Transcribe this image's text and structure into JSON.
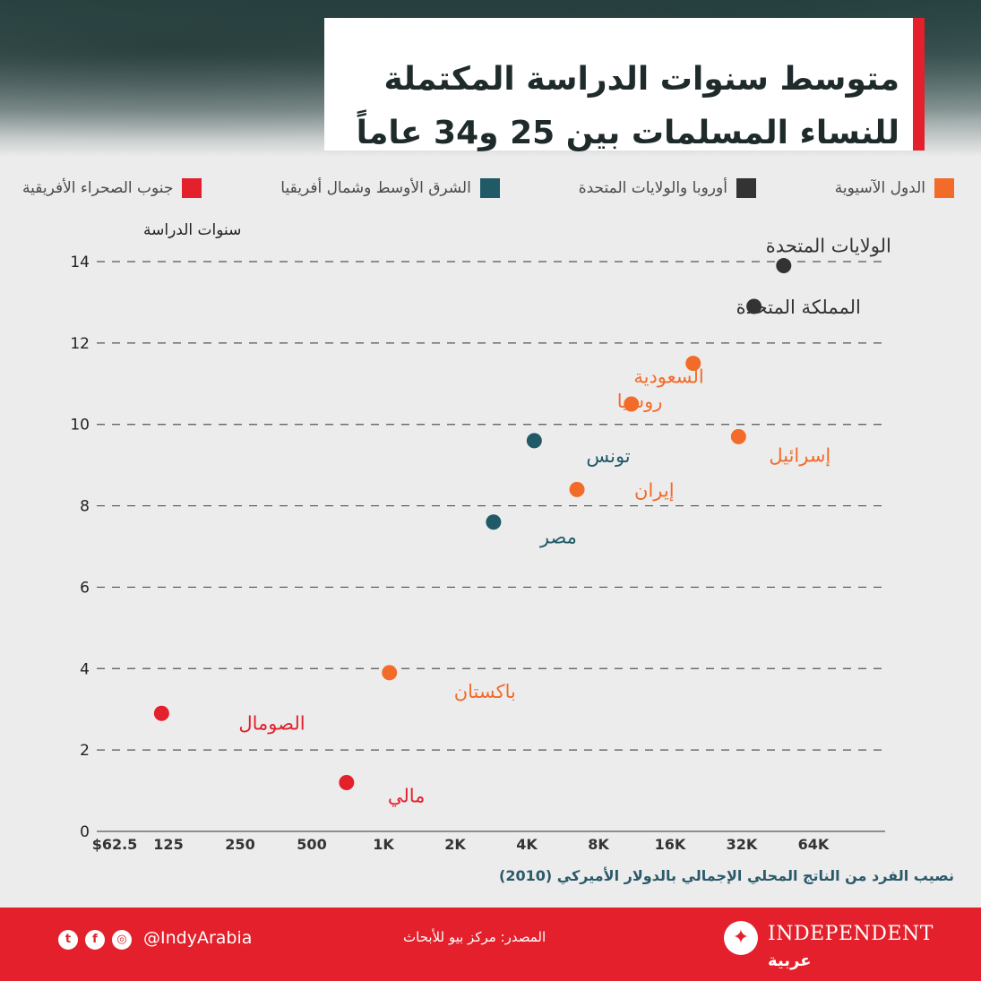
{
  "title": {
    "line1": "متوسط سنوات الدراسة المكتملة",
    "line2": "للنساء المسلمات بين 25 و34 عاماً"
  },
  "colors": {
    "asian": "#f26b29",
    "europe_us": "#333333",
    "mena": "#1f5a66",
    "ssa": "#e3202b",
    "brand_red": "#e3202b"
  },
  "legend": [
    {
      "label": "الدول الآسيوية",
      "color": "#f26b29"
    },
    {
      "label": "أوروبا والولايات المتحدة",
      "color": "#333333"
    },
    {
      "label": "الشرق الأوسط وشمال أفريقيا",
      "color": "#1f5a66"
    },
    {
      "label": "جنوب الصحراء الأفريقية",
      "color": "#e3202b"
    }
  ],
  "chart_data": {
    "type": "scatter",
    "ylabel": "سنوات الدراسة",
    "xlabel": "نصيب الفرد من الناتج المحلي الإجمالي بالدولار الأميركي (2010)",
    "x_scale": "log2",
    "xlim": [
      62.5,
      128000
    ],
    "ylim": [
      0,
      14
    ],
    "x_ticks": [
      62.5,
      125,
      250,
      500,
      1000,
      2000,
      4000,
      8000,
      16000,
      32000,
      64000
    ],
    "x_tick_labels": [
      "$62.5",
      "125",
      "250",
      "500",
      "1K",
      "2K",
      "4K",
      "8K",
      "16K",
      "32K",
      "64K"
    ],
    "y_ticks": [
      0,
      2,
      4,
      6,
      8,
      10,
      12,
      14
    ],
    "y_tick_labels": [
      "0",
      "2",
      "4",
      "6",
      "8",
      "10",
      "12",
      "14"
    ],
    "grid": true,
    "points": [
      {
        "label": "الولايات المتحدة",
        "x": 48000,
        "y": 13.9,
        "group": "europe_us"
      },
      {
        "label": "المملكة المتحدة",
        "x": 36000,
        "y": 12.9,
        "group": "europe_us"
      },
      {
        "label": "السعودية",
        "x": 20000,
        "y": 11.5,
        "group": "asian"
      },
      {
        "label": "روسيا",
        "x": 11000,
        "y": 10.5,
        "group": "asian"
      },
      {
        "label": "إسرائيل",
        "x": 31000,
        "y": 9.7,
        "group": "asian"
      },
      {
        "label": "تونس",
        "x": 4300,
        "y": 9.6,
        "group": "mena"
      },
      {
        "label": "إيران",
        "x": 6500,
        "y": 8.4,
        "group": "asian"
      },
      {
        "label": "مصر",
        "x": 2900,
        "y": 7.6,
        "group": "mena"
      },
      {
        "label": "باكستان",
        "x": 1060,
        "y": 3.9,
        "group": "asian"
      },
      {
        "label": "الصومال",
        "x": 117,
        "y": 2.9,
        "group": "ssa"
      },
      {
        "label": "مالي",
        "x": 700,
        "y": 1.2,
        "group": "ssa"
      }
    ]
  },
  "footer": {
    "source": "المصدر: مركز بيو للأبحاث",
    "handle": "@IndyArabia",
    "brand": "INDEPENDENT",
    "brand_sub": "عربية"
  }
}
